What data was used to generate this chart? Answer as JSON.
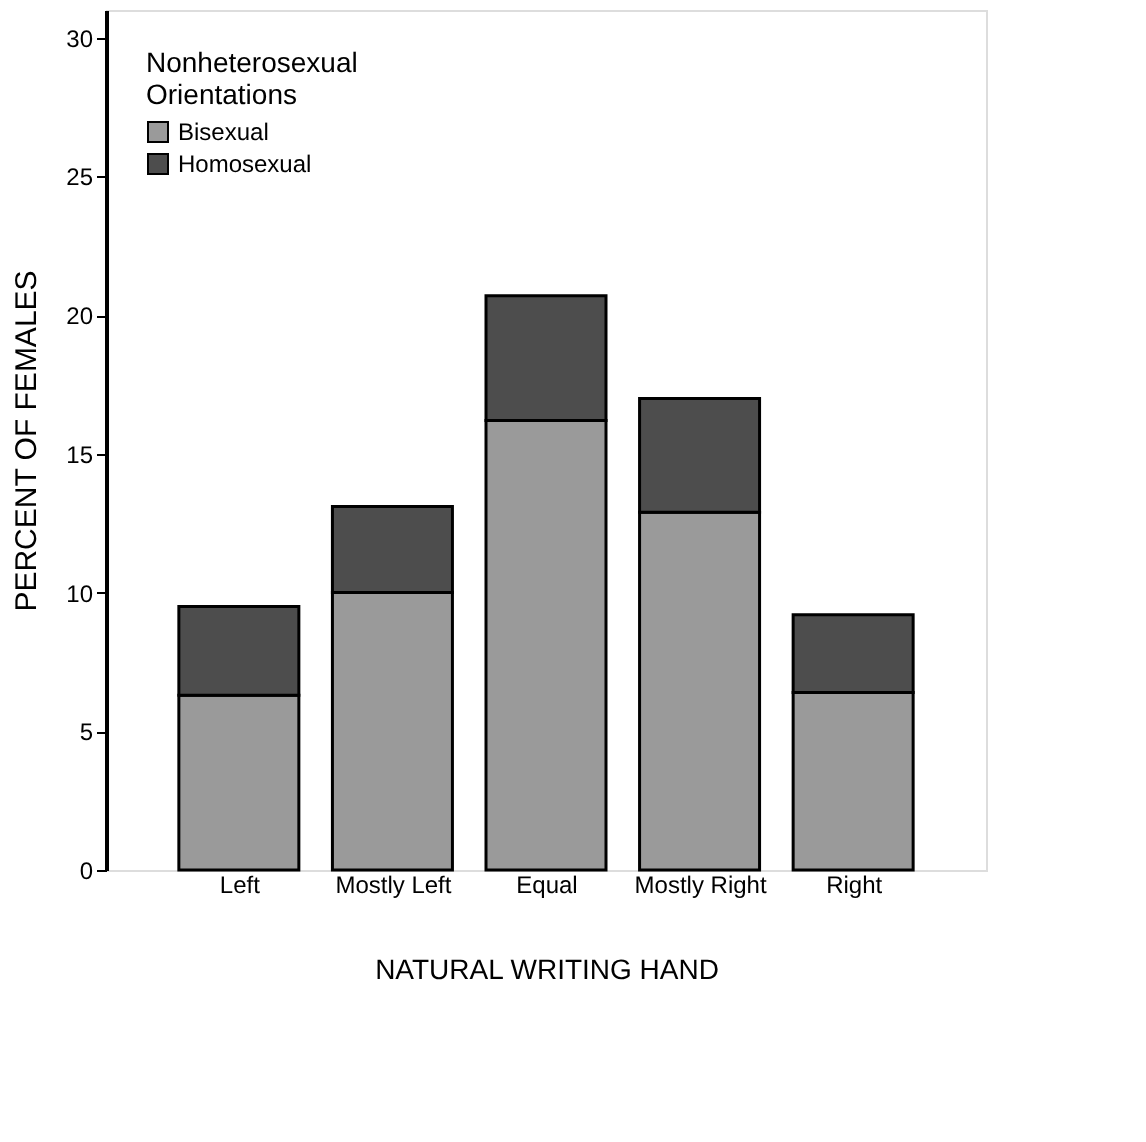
{
  "chart_data": {
    "type": "bar",
    "stacked": true,
    "xlabel": "NATURAL WRITING HAND",
    "ylabel": "PERCENT OF FEMALES",
    "legend_title": "Nonheterosexual Orientations",
    "legend": "top left",
    "grid": false,
    "categories": [
      "Left",
      "Mostly Left",
      "Equal",
      "Mostly Right",
      "Right"
    ],
    "ylim": [
      0,
      31
    ],
    "yticks": [
      0,
      5,
      10,
      15,
      20,
      25,
      30
    ],
    "series": [
      {
        "name": "Bisexual",
        "color": "#9a9a9a",
        "values": [
          6.3,
          10.0,
          16.2,
          12.9,
          6.4
        ]
      },
      {
        "name": "Homosexual",
        "color": "#4d4d4d",
        "values": [
          3.2,
          3.1,
          4.5,
          4.1,
          2.8
        ]
      }
    ]
  }
}
